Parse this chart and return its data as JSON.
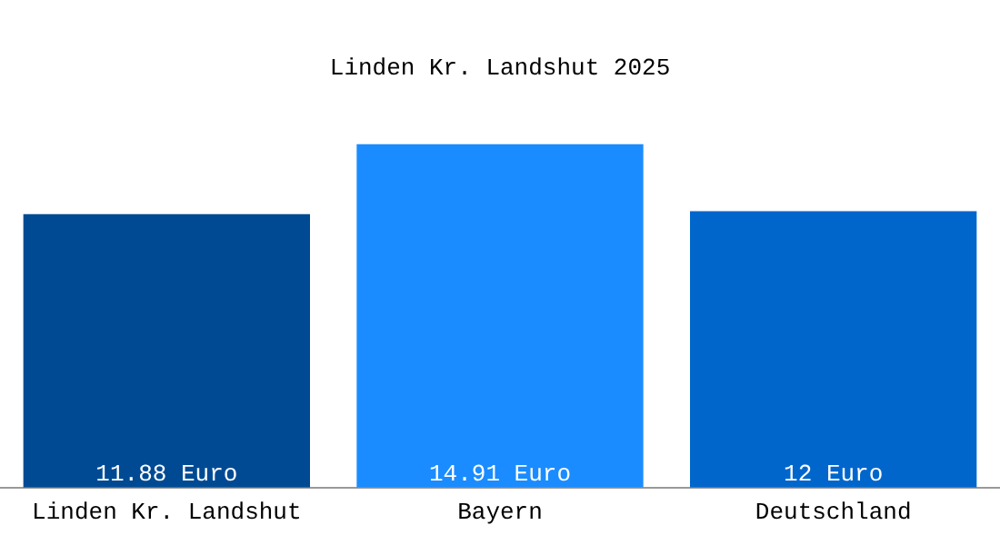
{
  "chart_data": {
    "type": "bar",
    "title": "Linden Kr. Landshut 2025",
    "categories": [
      "Linden Kr. Landshut",
      "Bayern",
      "Deutschland"
    ],
    "values": [
      11.88,
      14.91,
      12
    ],
    "colors": [
      "#004a94",
      "#1a8cff",
      "#0066cc"
    ],
    "value_labels": [
      "11.88 Euro",
      "14.91 Euro",
      "12 Euro"
    ],
    "tick_labels": "x",
    "legend": false
  }
}
